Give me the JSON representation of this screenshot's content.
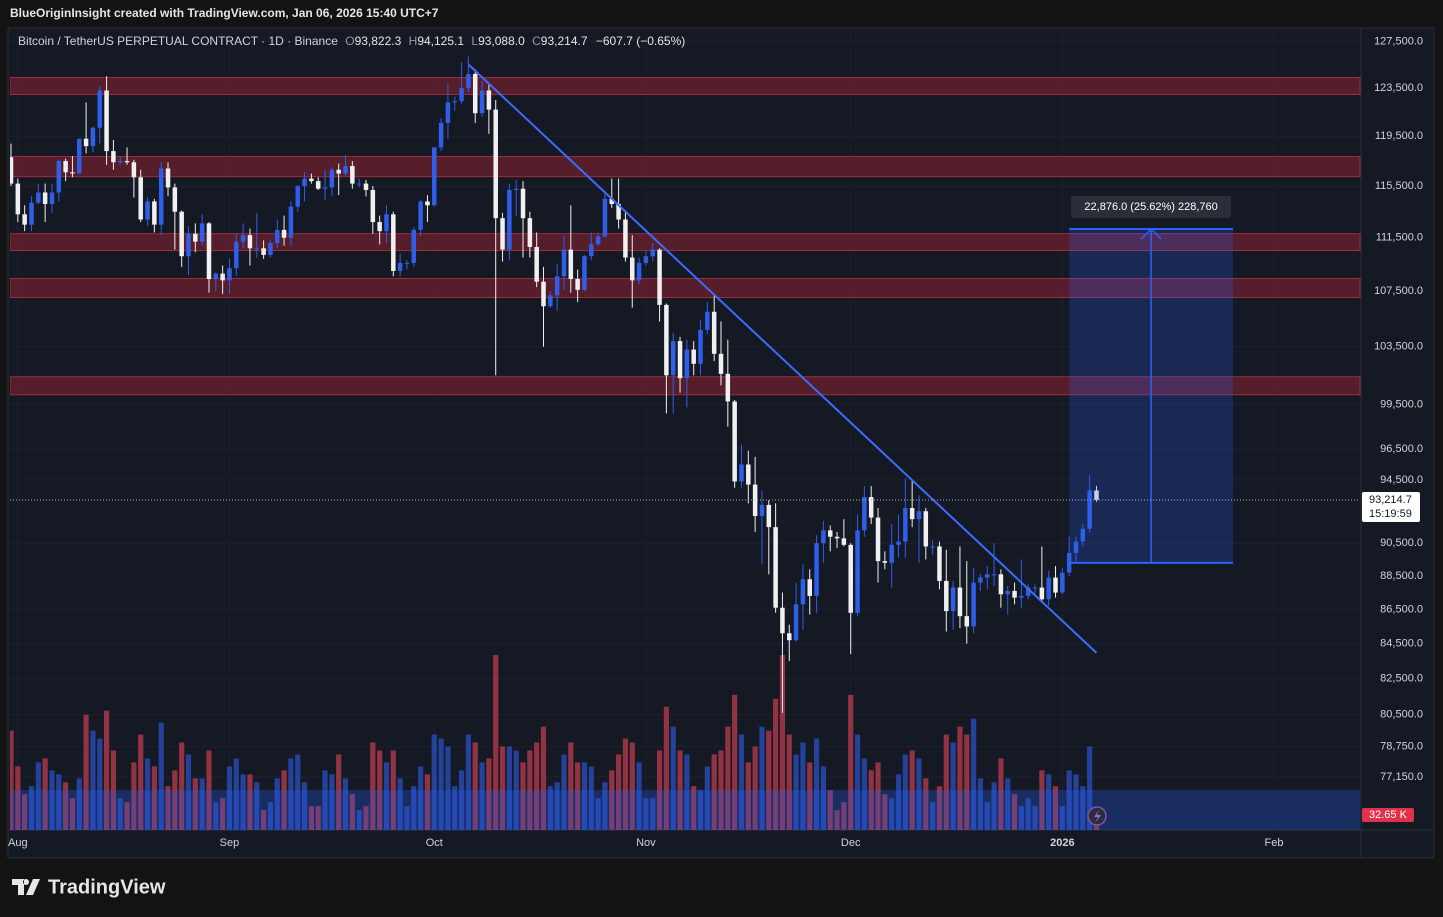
{
  "watermark": "BlueOriginInsight created with TradingView.com, Jan 06, 2026 15:40 UTC+7",
  "brand": "TradingView",
  "chart_data": {
    "type": "candlestick",
    "title": "Bitcoin / TetherUS PERPETUAL CONTRACT · 1D · Binance",
    "ohlc_labels": [
      [
        "O",
        "93,822.3"
      ],
      [
        "H",
        "94,125.1"
      ],
      [
        "L",
        "93,088.0"
      ],
      [
        "C",
        "93,214.7"
      ]
    ],
    "change_label": "−607.7 (−0.65%)",
    "y_scale": "log",
    "grid": true,
    "up_color": "#2f5ee8",
    "down_color": "#f0f0f0",
    "volume_up_color": "rgba(47,94,232,0.6)",
    "volume_down_color": "rgba(176,58,74,0.8)",
    "xlim": [
      0,
      197.6
    ],
    "xticks": [
      {
        "value": 1,
        "label": "Aug"
      },
      {
        "value": 32,
        "label": "Sep"
      },
      {
        "value": 62,
        "label": "Oct"
      },
      {
        "value": 93,
        "label": "Nov"
      },
      {
        "value": 123,
        "label": "Dec"
      },
      {
        "value": 154,
        "label": "2026"
      },
      {
        "value": 185,
        "label": "Feb"
      }
    ],
    "ylim": [
      74400,
      128500
    ],
    "yticks": [
      {
        "value": 127500,
        "label": "127,500.0"
      },
      {
        "value": 123500,
        "label": "123,500.0"
      },
      {
        "value": 119500,
        "label": "119,500.0"
      },
      {
        "value": 115500,
        "label": "115,500.0"
      },
      {
        "value": 111500,
        "label": "111,500.0"
      },
      {
        "value": 107500,
        "label": "107,500.0"
      },
      {
        "value": 103500,
        "label": "103,500.0"
      },
      {
        "value": 99500,
        "label": "99,500.0"
      },
      {
        "value": 96500,
        "label": "96,500.0"
      },
      {
        "value": 94500,
        "label": "94,500.0"
      },
      {
        "value": 90500,
        "label": "90,500.0"
      },
      {
        "value": 88500,
        "label": "88,500.0"
      },
      {
        "value": 86500,
        "label": "86,500.0"
      },
      {
        "value": 84500,
        "label": "84,500.0"
      },
      {
        "value": 82500,
        "label": "82,500.0"
      },
      {
        "value": 80500,
        "label": "80,500.0"
      },
      {
        "value": 78750,
        "label": "78,750.0"
      },
      {
        "value": 77150,
        "label": "77,150.0"
      }
    ],
    "candles": [
      [
        117800,
        118900,
        115500,
        115700
      ],
      [
        115700,
        116100,
        112700,
        113300
      ],
      [
        113300,
        114000,
        112000,
        112500
      ],
      [
        112500,
        114700,
        112000,
        114200
      ],
      [
        114200,
        115700,
        114100,
        115000
      ],
      [
        115000,
        115700,
        112700,
        114100
      ],
      [
        114100,
        115700,
        113400,
        115000
      ],
      [
        115000,
        117600,
        114300,
        117500
      ],
      [
        117500,
        117700,
        115900,
        116600
      ],
      [
        116600,
        117900,
        116200,
        116500
      ],
      [
        116500,
        119300,
        116500,
        119300
      ],
      [
        119300,
        122300,
        118100,
        118700
      ],
      [
        118700,
        120300,
        118200,
        120200
      ],
      [
        120200,
        123700,
        118900,
        123300
      ],
      [
        123300,
        124500,
        117200,
        118300
      ],
      [
        118300,
        119200,
        116800,
        117400
      ],
      [
        117400,
        117900,
        117200,
        117500
      ],
      [
        117500,
        118600,
        117200,
        117400
      ],
      [
        117400,
        117600,
        114600,
        116200
      ],
      [
        116200,
        116800,
        112700,
        112900
      ],
      [
        112900,
        114600,
        112400,
        114300
      ],
      [
        114300,
        114500,
        111900,
        112500
      ],
      [
        112500,
        117400,
        111700,
        116900
      ],
      [
        116900,
        117400,
        114700,
        115400
      ],
      [
        115400,
        115700,
        110600,
        113500
      ],
      [
        113500,
        113600,
        109300,
        110100
      ],
      [
        110100,
        112400,
        108700,
        111800
      ],
      [
        111800,
        112600,
        110400,
        111200
      ],
      [
        111200,
        113300,
        110900,
        112600
      ],
      [
        112600,
        112700,
        107400,
        108400
      ],
      [
        108400,
        108900,
        107500,
        108800
      ],
      [
        108800,
        109400,
        107300,
        108300
      ],
      [
        108300,
        109900,
        107300,
        109200
      ],
      [
        109200,
        111800,
        108600,
        111200
      ],
      [
        111200,
        112600,
        110700,
        111700
      ],
      [
        111700,
        112200,
        109400,
        110700
      ],
      [
        110700,
        113400,
        110000,
        110700
      ],
      [
        110700,
        111300,
        109900,
        110200
      ],
      [
        110200,
        111300,
        110000,
        111100
      ],
      [
        111100,
        112900,
        110700,
        112100
      ],
      [
        112100,
        113200,
        110900,
        111500
      ],
      [
        111500,
        114300,
        110900,
        113900
      ],
      [
        113900,
        115600,
        113500,
        115500
      ],
      [
        115500,
        116600,
        114300,
        116100
      ],
      [
        116100,
        116500,
        115700,
        115900
      ],
      [
        115900,
        116200,
        115200,
        115300
      ],
      [
        115300,
        116800,
        114400,
        115400
      ],
      [
        115400,
        117000,
        114700,
        116800
      ],
      [
        116800,
        117300,
        114800,
        116500
      ],
      [
        116500,
        118000,
        116300,
        117100
      ],
      [
        117100,
        117500,
        115300,
        115700
      ],
      [
        115700,
        116100,
        115400,
        115700
      ],
      [
        115700,
        116000,
        114700,
        115200
      ],
      [
        115200,
        115500,
        111800,
        112700
      ],
      [
        112700,
        113200,
        111000,
        112000
      ],
      [
        112000,
        114000,
        111100,
        113300
      ],
      [
        113300,
        113500,
        108600,
        109000
      ],
      [
        109000,
        110300,
        108600,
        109600
      ],
      [
        109600,
        109800,
        109100,
        109600
      ],
      [
        109600,
        112300,
        109300,
        112100
      ],
      [
        112100,
        114400,
        111600,
        114300
      ],
      [
        114300,
        114800,
        112700,
        114000
      ],
      [
        114000,
        118600,
        113900,
        118600
      ],
      [
        118600,
        121000,
        118300,
        120600
      ],
      [
        120600,
        123900,
        119300,
        122300
      ],
      [
        122300,
        122800,
        121600,
        122400
      ],
      [
        122400,
        125700,
        122200,
        123500
      ],
      [
        123500,
        126200,
        123100,
        124700
      ],
      [
        124700,
        125100,
        120600,
        121400
      ],
      [
        121400,
        124100,
        121100,
        123300
      ],
      [
        123300,
        123800,
        119700,
        121700
      ],
      [
        121700,
        122500,
        101500,
        113000
      ],
      [
        113000,
        113400,
        109700,
        110600
      ],
      [
        110600,
        115700,
        109800,
        115200
      ],
      [
        115200,
        116000,
        113200,
        115300
      ],
      [
        115300,
        115900,
        110000,
        113000
      ],
      [
        113000,
        113500,
        110000,
        110800
      ],
      [
        110800,
        111900,
        107800,
        108200
      ],
      [
        108200,
        109300,
        103500,
        106400
      ],
      [
        106400,
        107500,
        106300,
        107200
      ],
      [
        107200,
        109500,
        106100,
        108600
      ],
      [
        108600,
        111700,
        107600,
        110600
      ],
      [
        110600,
        114000,
        107400,
        108400
      ],
      [
        108400,
        109100,
        106700,
        107600
      ],
      [
        107600,
        110200,
        107500,
        110100
      ],
      [
        110100,
        111900,
        109800,
        111000
      ],
      [
        111000,
        111900,
        110900,
        111600
      ],
      [
        111600,
        115100,
        111500,
        114500
      ],
      [
        114500,
        116100,
        113800,
        114100
      ],
      [
        114100,
        116100,
        112200,
        112900
      ],
      [
        112900,
        113600,
        109700,
        110000
      ],
      [
        110000,
        111700,
        106300,
        108300
      ],
      [
        108300,
        110000,
        108000,
        109600
      ],
      [
        109600,
        110500,
        109400,
        110100
      ],
      [
        110100,
        111100,
        109700,
        110600
      ],
      [
        110600,
        110700,
        105300,
        106500
      ],
      [
        106500,
        106600,
        98900,
        101500
      ],
      [
        101500,
        104500,
        98900,
        103900
      ],
      [
        103900,
        104200,
        100300,
        101300
      ],
      [
        101300,
        104000,
        99300,
        103300
      ],
      [
        103300,
        103900,
        101500,
        102300
      ],
      [
        102300,
        105400,
        101500,
        104700
      ],
      [
        104700,
        106700,
        104400,
        106000
      ],
      [
        106000,
        107300,
        102500,
        103000
      ],
      [
        103000,
        105300,
        100800,
        101600
      ],
      [
        101600,
        104000,
        98000,
        99700
      ],
      [
        99700,
        99800,
        94000,
        94400
      ],
      [
        94400,
        96800,
        94000,
        95500
      ],
      [
        95500,
        96400,
        93000,
        94200
      ],
      [
        94200,
        96000,
        91200,
        92200
      ],
      [
        92200,
        93800,
        89200,
        92900
      ],
      [
        92900,
        93200,
        88600,
        91500
      ],
      [
        91500,
        93000,
        86300,
        86600
      ],
      [
        86600,
        87500,
        80600,
        85100
      ],
      [
        85100,
        85600,
        83500,
        84700
      ],
      [
        84700,
        88100,
        84600,
        86800
      ],
      [
        86800,
        89200,
        85300,
        88300
      ],
      [
        88300,
        88900,
        86200,
        87300
      ],
      [
        87300,
        91000,
        86300,
        90500
      ],
      [
        90500,
        91900,
        89300,
        91300
      ],
      [
        91300,
        91600,
        90000,
        90900
      ],
      [
        90900,
        91200,
        90200,
        90800
      ],
      [
        90800,
        92000,
        90300,
        90400
      ],
      [
        90400,
        90500,
        83900,
        86300
      ],
      [
        86300,
        92300,
        86100,
        91300
      ],
      [
        91300,
        94100,
        90900,
        93400
      ],
      [
        93400,
        94100,
        91700,
        92100
      ],
      [
        92100,
        92700,
        88100,
        89400
      ],
      [
        89400,
        90000,
        88900,
        89300
      ],
      [
        89300,
        91700,
        87800,
        90400
      ],
      [
        90400,
        92300,
        89600,
        90600
      ],
      [
        90600,
        94600,
        89600,
        92700
      ],
      [
        92700,
        94500,
        91500,
        92000
      ],
      [
        92000,
        93500,
        89300,
        92500
      ],
      [
        92500,
        92700,
        89500,
        90300
      ],
      [
        90300,
        90700,
        89800,
        90300
      ],
      [
        90300,
        90600,
        87700,
        88200
      ],
      [
        88200,
        90100,
        85200,
        86400
      ],
      [
        86400,
        88200,
        85300,
        87800
      ],
      [
        87800,
        90300,
        85400,
        86100
      ],
      [
        86100,
        89400,
        84500,
        85500
      ],
      [
        85500,
        89000,
        85100,
        88100
      ],
      [
        88100,
        88600,
        87600,
        88400
      ],
      [
        88400,
        89100,
        87700,
        88600
      ],
      [
        88600,
        90500,
        87900,
        88600
      ],
      [
        88600,
        88900,
        86600,
        87400
      ],
      [
        87400,
        87900,
        86200,
        87600
      ],
      [
        87600,
        88100,
        86800,
        87200
      ],
      [
        87200,
        89500,
        86600,
        87300
      ],
      [
        87300,
        88000,
        87100,
        87800
      ],
      [
        87800,
        88000,
        87400,
        87800
      ],
      [
        87800,
        90300,
        86900,
        87100
      ],
      [
        87100,
        88800,
        86700,
        88400
      ],
      [
        88400,
        89100,
        87200,
        87500
      ],
      [
        87500,
        89000,
        87400,
        88700
      ],
      [
        88700,
        90900,
        88500,
        89900
      ],
      [
        89900,
        90900,
        89300,
        90600
      ],
      [
        90600,
        91700,
        90300,
        91400
      ],
      [
        91400,
        94800,
        91200,
        93822.3
      ],
      [
        93822.3,
        94125.1,
        93088,
        93214.7
      ]
    ],
    "volumes": [
      250,
      160,
      90,
      110,
      170,
      180,
      150,
      140,
      120,
      80,
      130,
      290,
      250,
      230,
      300,
      200,
      80,
      70,
      170,
      240,
      180,
      160,
      270,
      110,
      150,
      220,
      190,
      130,
      130,
      200,
      70,
      80,
      160,
      180,
      140,
      140,
      120,
      50,
      70,
      130,
      150,
      180,
      190,
      120,
      60,
      60,
      150,
      140,
      190,
      130,
      90,
      50,
      60,
      220,
      200,
      170,
      200,
      130,
      60,
      110,
      160,
      140,
      240,
      230,
      210,
      110,
      150,
      240,
      220,
      170,
      180,
      440,
      210,
      210,
      200,
      170,
      200,
      220,
      260,
      110,
      120,
      190,
      220,
      170,
      170,
      160,
      80,
      120,
      150,
      190,
      230,
      220,
      170,
      80,
      80,
      200,
      310,
      260,
      200,
      190,
      110,
      100,
      160,
      190,
      200,
      260,
      340,
      240,
      170,
      210,
      260,
      250,
      330,
      440,
      240,
      190,
      220,
      170,
      230,
      160,
      100,
      50,
      70,
      340,
      240,
      180,
      150,
      170,
      90,
      80,
      140,
      190,
      200,
      180,
      130,
      70,
      110,
      240,
      220,
      260,
      240,
      280,
      130,
      70,
      120,
      180,
      130,
      90,
      60,
      80,
      60,
      150,
      140,
      110,
      60,
      150,
      140,
      110,
      210,
      32.65
    ],
    "vlim": [
      0,
      440
    ],
    "last_volume_label": "32.65 K",
    "zones": [
      [
        122960,
        124400
      ],
      [
        116250,
        117860
      ],
      [
        110530,
        111810
      ],
      [
        107040,
        108440
      ],
      [
        100160,
        101400
      ]
    ],
    "trendline": {
      "x": [
        67,
        159
      ],
      "y": [
        125510,
        83970
      ]
    },
    "long_position": {
      "x": [
        155,
        179
      ],
      "entry": 89290,
      "target": 112166,
      "label": "22,876.0 (25.62%) 228,760"
    },
    "current_price": 93214.7,
    "current_price_label": "93,214.7",
    "countdown": "15:19:59"
  }
}
